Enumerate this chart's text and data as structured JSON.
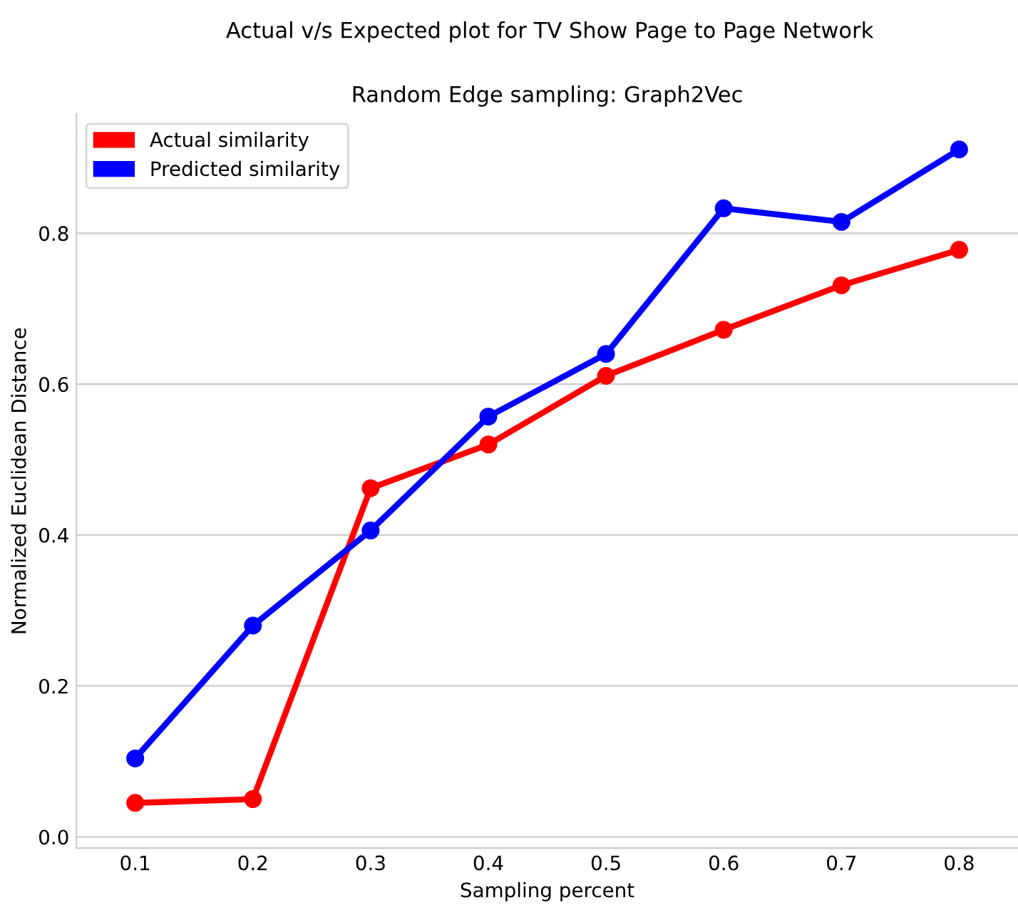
{
  "chart_data": {
    "type": "line",
    "title": "Random Edge sampling: Graph2Vec",
    "subtitle": "Actual v/s Expected plot for TV Show Page to Page Network",
    "xlabel": "Sampling percent",
    "ylabel": "Normalized Euclidean Distance",
    "categories": [
      "0.1",
      "0.2",
      "0.3",
      "0.4",
      "0.5",
      "0.6",
      "0.7",
      "0.8"
    ],
    "series": [
      {
        "name": "Actual similarity",
        "color": "#ff0000",
        "values": [
          0.045,
          0.05,
          0.462,
          0.52,
          0.611,
          0.672,
          0.731,
          0.778
        ]
      },
      {
        "name": "Predicted similarity",
        "color": "#0000ff",
        "values": [
          0.104,
          0.28,
          0.406,
          0.557,
          0.64,
          0.833,
          0.815,
          0.911
        ]
      }
    ],
    "ylim": [
      -0.015,
      0.958
    ],
    "yticks": [
      {
        "value": 0,
        "label": "0.0"
      },
      0.2,
      0.4,
      0.6,
      0.8
    ],
    "grid": "y",
    "legend": "top left",
    "marker": "circle",
    "line_style": "solid"
  }
}
